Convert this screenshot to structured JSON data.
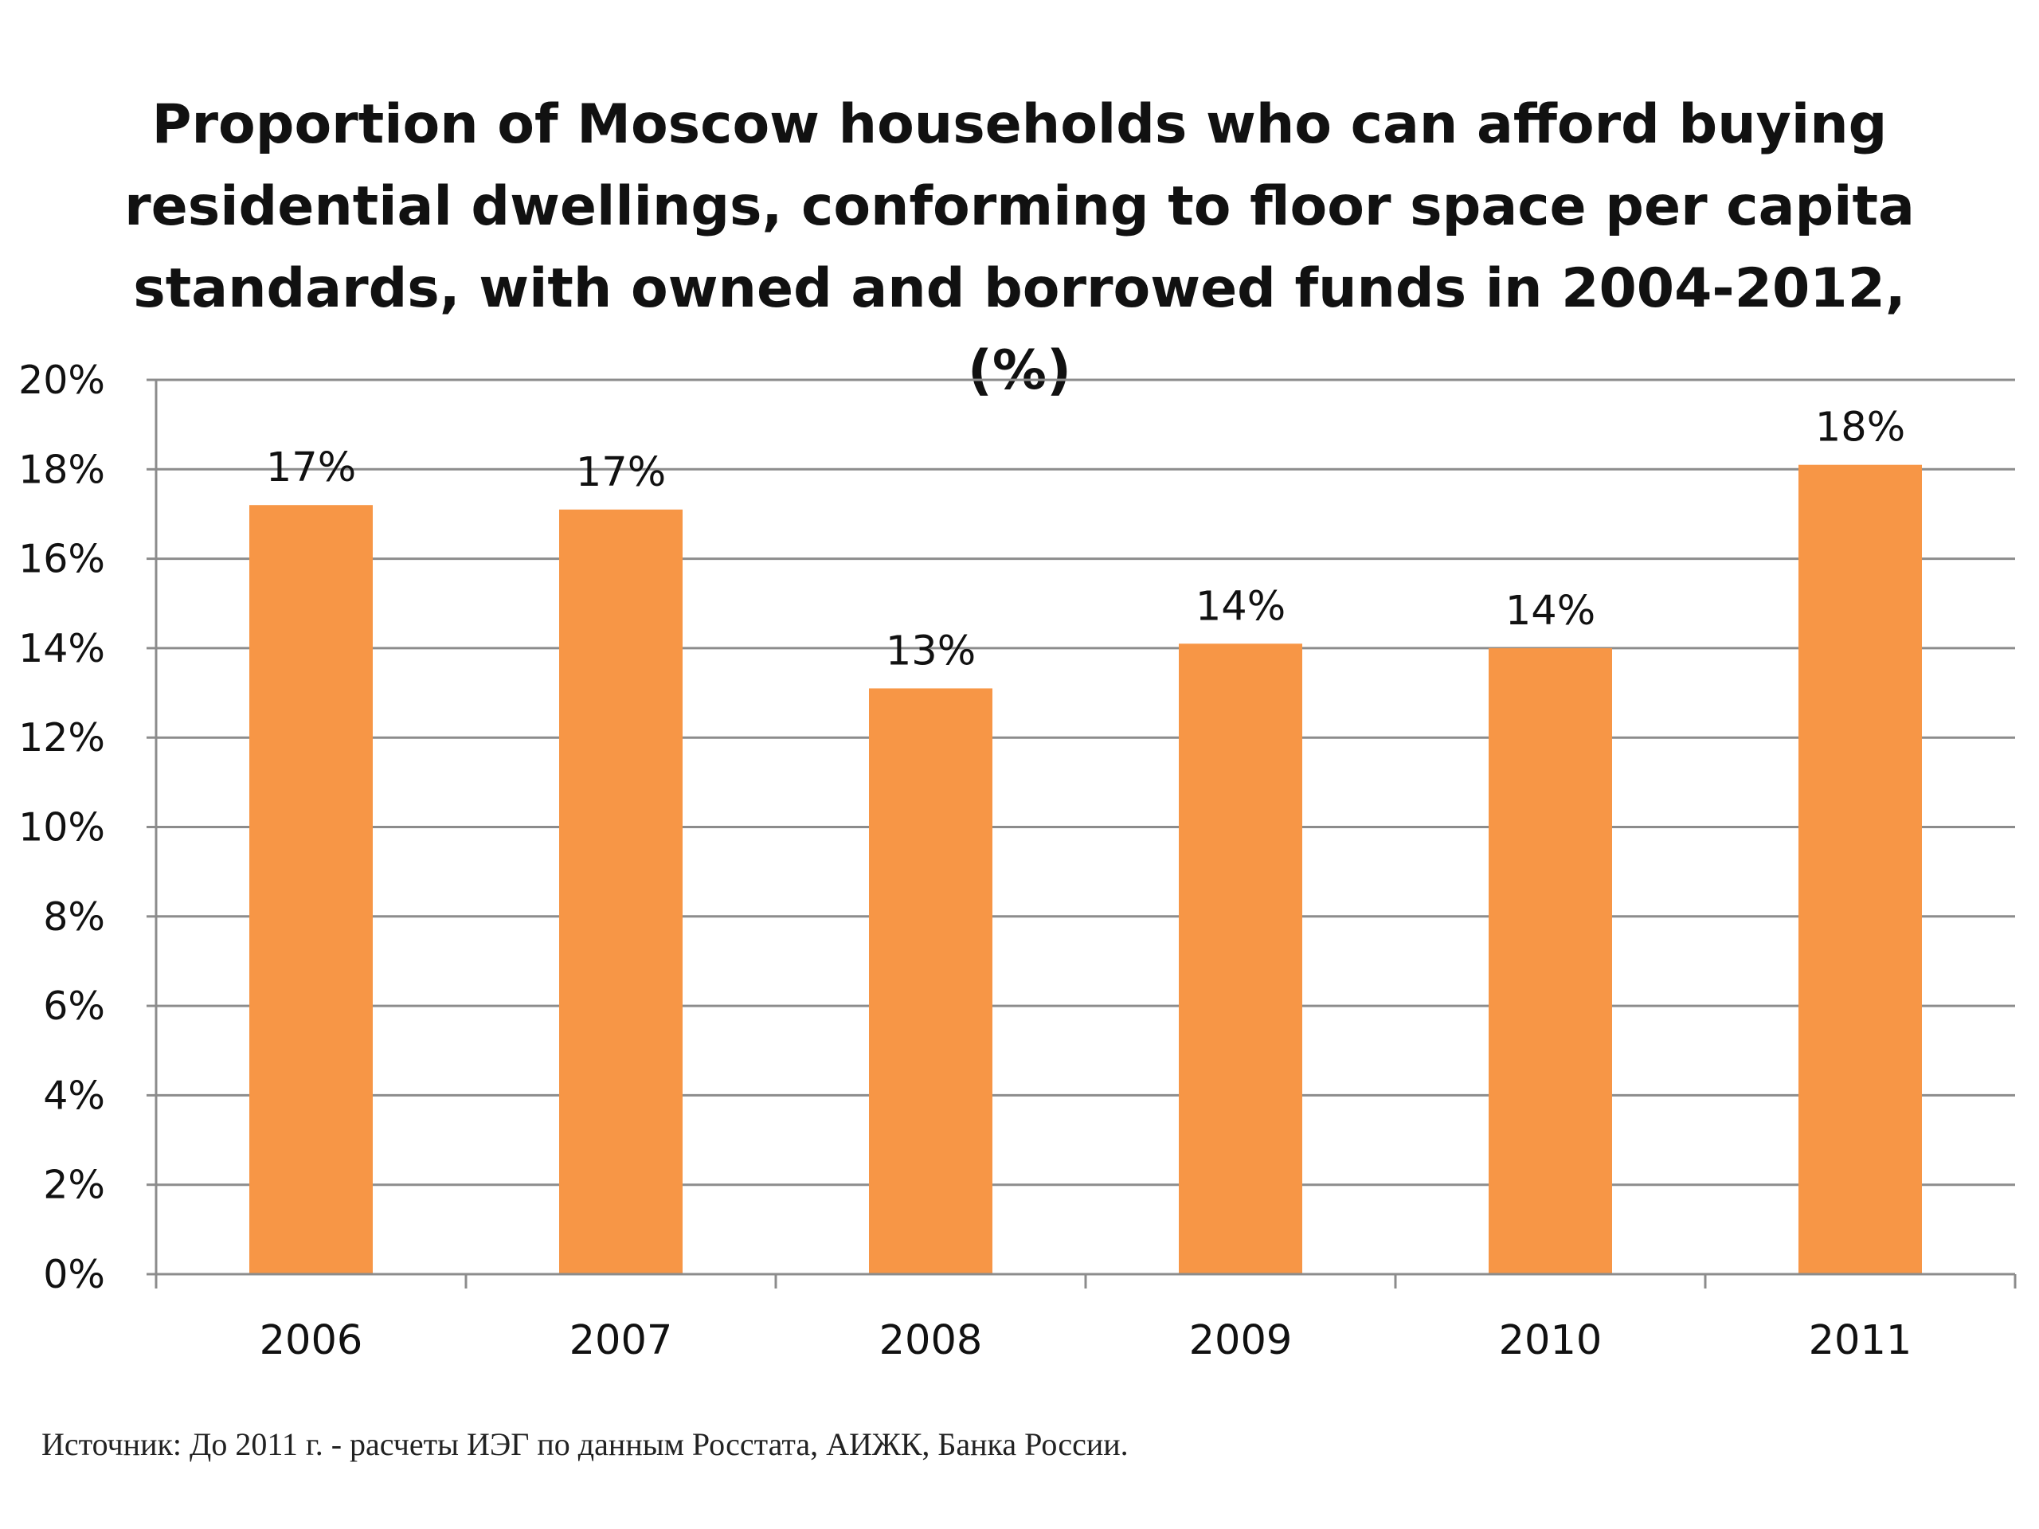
{
  "chart_data": {
    "type": "bar",
    "title": "Proportion of Moscow households who can afford buying residential dwellings, conforming to floor space per capita standards, with owned and borrowed funds in 2004-2012, (%)",
    "categories": [
      "2006",
      "2007",
      "2008",
      "2009",
      "2010",
      "2011"
    ],
    "values": [
      17.2,
      17.1,
      13.1,
      14.1,
      14.0,
      18.1
    ],
    "data_labels": [
      "17%",
      "17%",
      "13%",
      "14%",
      "14%",
      "18%"
    ],
    "y_ticks": [
      "0%",
      "2%",
      "4%",
      "6%",
      "8%",
      "10%",
      "12%",
      "14%",
      "16%",
      "18%",
      "20%"
    ],
    "ylim": [
      0,
      20
    ],
    "y_tick_step": 2,
    "grid": true,
    "legend": "none",
    "bar_color": "#f79646",
    "grid_color": "#8c8c8c",
    "axis_color": "#8c8c8c"
  },
  "source": "Источник: До 2011 г. - расчеты ИЭГ по данным Росстата, АИЖК, Банка России."
}
